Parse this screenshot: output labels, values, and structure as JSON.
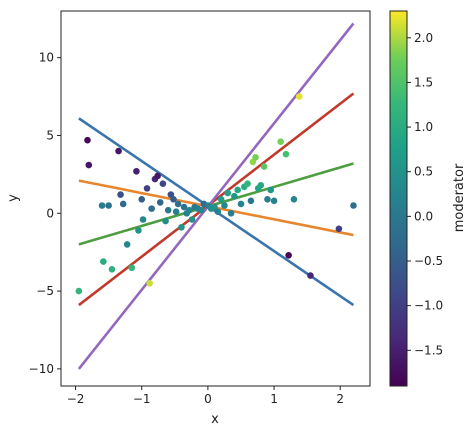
{
  "chart_data": {
    "type": "scatter",
    "xlabel": "x",
    "ylabel": "y",
    "xlim": [
      -2.22,
      2.45
    ],
    "ylim": [
      -11.1,
      13.0
    ],
    "xticks": [
      -2,
      -1,
      0,
      1,
      2
    ],
    "yticks": [
      -10,
      -5,
      0,
      5,
      10
    ],
    "colorbar": {
      "label": "moderator",
      "colormap": "viridis",
      "range": [
        -1.9,
        2.3
      ],
      "ticks": [
        -1.5,
        -1.0,
        -0.5,
        0.0,
        0.5,
        1.0,
        1.5,
        2.0
      ],
      "tick_labels": [
        "−1.5",
        "−1.0",
        "−0.5",
        "0.0",
        "0.5",
        "1.0",
        "1.5",
        "2.0"
      ]
    },
    "points": [
      {
        "x": -1.95,
        "y": -5.0,
        "m": 1.2
      },
      {
        "x": -1.82,
        "y": 4.7,
        "m": -1.8
      },
      {
        "x": -1.8,
        "y": 3.1,
        "m": -1.6
      },
      {
        "x": -1.6,
        "y": 0.5,
        "m": 0.1
      },
      {
        "x": -1.58,
        "y": -3.1,
        "m": 1.0
      },
      {
        "x": -1.5,
        "y": 0.5,
        "m": -0.1
      },
      {
        "x": -1.45,
        "y": -3.6,
        "m": 1.1
      },
      {
        "x": -1.35,
        "y": 4.0,
        "m": -1.6
      },
      {
        "x": -1.32,
        "y": 1.2,
        "m": -0.7
      },
      {
        "x": -1.28,
        "y": 0.6,
        "m": -0.3
      },
      {
        "x": -1.22,
        "y": -2.0,
        "m": 0.3
      },
      {
        "x": -1.15,
        "y": -3.5,
        "m": 1.2
      },
      {
        "x": -1.08,
        "y": 2.7,
        "m": -1.5
      },
      {
        "x": -1.05,
        "y": -1.1,
        "m": 0.5
      },
      {
        "x": -1.0,
        "y": 0.9,
        "m": -0.5
      },
      {
        "x": -0.98,
        "y": -0.4,
        "m": 0.3
      },
      {
        "x": -0.92,
        "y": 1.6,
        "m": -1.0
      },
      {
        "x": -0.88,
        "y": -4.5,
        "m": 2.1
      },
      {
        "x": -0.85,
        "y": 0.3,
        "m": -0.2
      },
      {
        "x": -0.8,
        "y": 2.2,
        "m": -1.4
      },
      {
        "x": -0.76,
        "y": 2.4,
        "m": -1.6
      },
      {
        "x": -0.72,
        "y": 0.7,
        "m": -0.4
      },
      {
        "x": -0.68,
        "y": 1.9,
        "m": -0.9
      },
      {
        "x": -0.64,
        "y": -0.5,
        "m": 0.4
      },
      {
        "x": -0.6,
        "y": 0.2,
        "m": 0.0
      },
      {
        "x": -0.56,
        "y": 1.2,
        "m": -0.7
      },
      {
        "x": -0.52,
        "y": 0.9,
        "m": -0.5
      },
      {
        "x": -0.48,
        "y": 0.1,
        "m": 0.1
      },
      {
        "x": -0.45,
        "y": 0.6,
        "m": -0.2
      },
      {
        "x": -0.4,
        "y": -0.9,
        "m": 0.6
      },
      {
        "x": -0.36,
        "y": 0.4,
        "m": -0.1
      },
      {
        "x": -0.32,
        "y": 0.0,
        "m": 0.2
      },
      {
        "x": -0.28,
        "y": 0.2,
        "m": 0.3
      },
      {
        "x": -0.24,
        "y": -0.4,
        "m": 0.5
      },
      {
        "x": -0.2,
        "y": 0.4,
        "m": 0.0
      },
      {
        "x": -0.15,
        "y": 0.3,
        "m": 0.1
      },
      {
        "x": -0.1,
        "y": 0.2,
        "m": 0.3
      },
      {
        "x": -0.06,
        "y": 0.6,
        "m": -0.3
      },
      {
        "x": 0.0,
        "y": 0.5,
        "m": 0.2
      },
      {
        "x": 0.05,
        "y": 0.3,
        "m": 0.4
      },
      {
        "x": 0.1,
        "y": 0.4,
        "m": 0.5
      },
      {
        "x": 0.15,
        "y": 0.1,
        "m": 0.2
      },
      {
        "x": 0.2,
        "y": 0.9,
        "m": 0.7
      },
      {
        "x": 0.25,
        "y": 0.5,
        "m": 0.3
      },
      {
        "x": 0.3,
        "y": 1.3,
        "m": 0.8
      },
      {
        "x": 0.35,
        "y": 0.0,
        "m": 0.1
      },
      {
        "x": 0.4,
        "y": 1.1,
        "m": 0.6
      },
      {
        "x": 0.45,
        "y": 1.5,
        "m": 0.9
      },
      {
        "x": 0.5,
        "y": 0.6,
        "m": 0.2
      },
      {
        "x": 0.55,
        "y": 1.7,
        "m": 1.0
      },
      {
        "x": 0.6,
        "y": 1.9,
        "m": 1.2
      },
      {
        "x": 0.65,
        "y": 0.8,
        "m": 0.0
      },
      {
        "x": 0.68,
        "y": 3.3,
        "m": 1.9
      },
      {
        "x": 0.72,
        "y": 3.6,
        "m": 1.8
      },
      {
        "x": 0.76,
        "y": 1.6,
        "m": 0.8
      },
      {
        "x": 0.8,
        "y": 1.8,
        "m": 0.9
      },
      {
        "x": 0.85,
        "y": 3.0,
        "m": 1.6
      },
      {
        "x": 0.9,
        "y": 0.9,
        "m": 0.1
      },
      {
        "x": 0.95,
        "y": 1.5,
        "m": 0.6
      },
      {
        "x": 1.0,
        "y": 0.8,
        "m": 0.2
      },
      {
        "x": 1.1,
        "y": 4.6,
        "m": 1.8
      },
      {
        "x": 1.18,
        "y": 3.8,
        "m": 1.4
      },
      {
        "x": 1.22,
        "y": -2.7,
        "m": -1.8
      },
      {
        "x": 1.3,
        "y": 0.9,
        "m": 0.3
      },
      {
        "x": 1.38,
        "y": 7.5,
        "m": 2.2
      },
      {
        "x": 1.55,
        "y": -4.0,
        "m": -1.4
      },
      {
        "x": 1.98,
        "y": -1.0,
        "m": -1.0
      },
      {
        "x": 2.2,
        "y": 0.5,
        "m": -0.2
      }
    ],
    "lines": [
      {
        "color": "#3a74ad",
        "x": [
          -1.95,
          2.2
        ],
        "y": [
          6.1,
          -5.9
        ]
      },
      {
        "color": "#e8862f",
        "x": [
          -1.95,
          2.2
        ],
        "y": [
          2.1,
          -1.4
        ]
      },
      {
        "color": "#4c9e3f",
        "x": [
          -1.95,
          2.2
        ],
        "y": [
          -2.0,
          3.2
        ]
      },
      {
        "color": "#c0392b",
        "x": [
          -1.95,
          2.2
        ],
        "y": [
          -5.9,
          7.7
        ]
      },
      {
        "color": "#9467bd",
        "x": [
          -1.95,
          2.2
        ],
        "y": [
          -10.0,
          12.2
        ]
      }
    ]
  }
}
